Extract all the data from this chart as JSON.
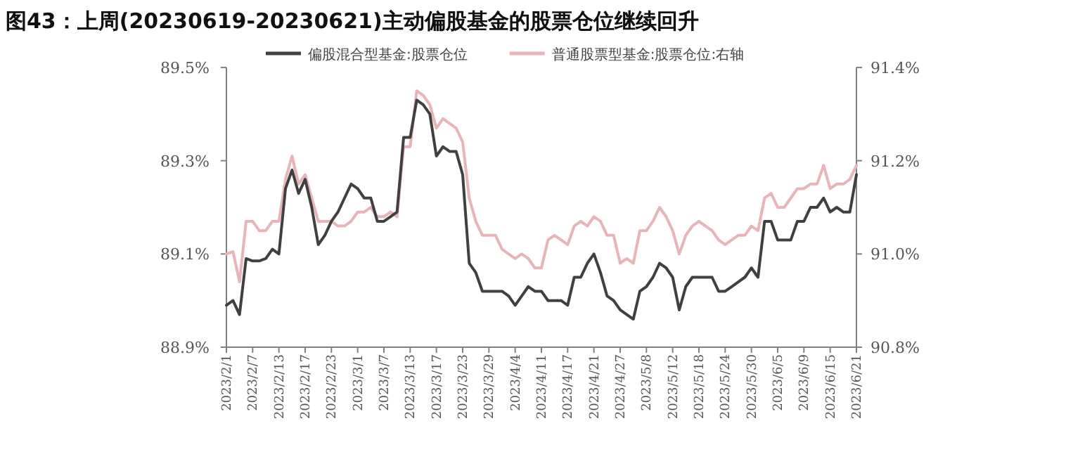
{
  "chart_data": {
    "type": "line",
    "title": "图43：上周(20230619-20230621)主动偏股基金的股票仓位继续回升",
    "categories": [
      "2023/2/1",
      null,
      null,
      null,
      "2023/2/7",
      null,
      null,
      null,
      "2023/2/13",
      null,
      null,
      null,
      "2023/2/17",
      null,
      null,
      null,
      "2023/2/23",
      null,
      null,
      null,
      "2023/3/1",
      null,
      null,
      null,
      "2023/3/7",
      null,
      null,
      null,
      "2023/3/13",
      null,
      null,
      null,
      "2023/3/17",
      null,
      null,
      null,
      "2023/3/23",
      null,
      null,
      null,
      "2023/3/29",
      null,
      null,
      null,
      "2023/4/4",
      null,
      null,
      null,
      "2023/4/11",
      null,
      null,
      null,
      "2023/4/17",
      null,
      null,
      null,
      "2023/4/21",
      null,
      null,
      null,
      "2023/4/27",
      null,
      null,
      null,
      "2023/5/8",
      null,
      null,
      null,
      "2023/5/12",
      null,
      null,
      null,
      "2023/5/18",
      null,
      null,
      null,
      "2023/5/24",
      null,
      null,
      null,
      "2023/5/30",
      null,
      null,
      null,
      "2023/6/5",
      null,
      null,
      null,
      "2023/6/9",
      null,
      null,
      null,
      "2023/6/15",
      null,
      null,
      null,
      "2023/6/21"
    ],
    "series": [
      {
        "name": "偏股混合型基金:股票仓位",
        "color": "#404040",
        "values": [
          88.99,
          89.0,
          88.97,
          89.09,
          89.085,
          89.085,
          89.09,
          89.11,
          89.1,
          89.24,
          89.28,
          89.23,
          89.26,
          89.2,
          89.12,
          89.14,
          89.17,
          89.19,
          89.22,
          89.25,
          89.24,
          89.22,
          89.22,
          89.17,
          89.17,
          89.18,
          89.19,
          89.35,
          89.35,
          89.43,
          89.42,
          89.4,
          89.31,
          89.33,
          89.32,
          89.32,
          89.27,
          89.08,
          89.06,
          89.02,
          89.02,
          89.02,
          89.02,
          89.01,
          88.99,
          89.01,
          89.03,
          89.02,
          89.02,
          89.0,
          89.0,
          89.0,
          88.99,
          89.05,
          89.05,
          89.08,
          89.1,
          89.06,
          89.01,
          89.0,
          88.98,
          88.97,
          88.96,
          89.02,
          89.03,
          89.05,
          89.08,
          89.07,
          89.05,
          88.98,
          89.03,
          89.05,
          89.05,
          89.05,
          89.05,
          89.02,
          89.02,
          89.03,
          89.04,
          89.05,
          89.07,
          89.05,
          89.17,
          89.17,
          89.13,
          89.13,
          89.13,
          89.17,
          89.17,
          89.2,
          89.2,
          89.22,
          89.19,
          89.2,
          89.19,
          89.19,
          89.27
        ]
      },
      {
        "name": "普通股票型基金:股票仓位:右轴",
        "color": "#e8b4b8",
        "axis": "y2",
        "values": [
          91.0,
          91.005,
          90.94,
          91.07,
          91.07,
          91.05,
          91.05,
          91.07,
          91.07,
          91.16,
          91.21,
          91.15,
          91.17,
          91.12,
          91.07,
          91.07,
          91.07,
          91.06,
          91.06,
          91.07,
          91.09,
          91.09,
          91.1,
          91.08,
          91.08,
          91.09,
          91.08,
          91.23,
          91.23,
          91.35,
          91.34,
          91.32,
          91.27,
          91.29,
          91.28,
          91.27,
          91.24,
          91.12,
          91.07,
          91.04,
          91.04,
          91.04,
          91.01,
          91.0,
          90.99,
          91.0,
          90.99,
          90.97,
          90.97,
          91.03,
          91.04,
          91.03,
          91.02,
          91.06,
          91.07,
          91.06,
          91.08,
          91.07,
          91.04,
          91.04,
          90.98,
          90.99,
          90.98,
          91.05,
          91.05,
          91.07,
          91.1,
          91.08,
          91.05,
          91.0,
          91.04,
          91.06,
          91.07,
          91.06,
          91.05,
          91.03,
          91.02,
          91.03,
          91.04,
          91.04,
          91.06,
          91.05,
          91.12,
          91.13,
          91.1,
          91.1,
          91.12,
          91.14,
          91.14,
          91.15,
          91.15,
          91.19,
          91.14,
          91.15,
          91.15,
          91.16,
          91.19
        ]
      }
    ],
    "ylim": [
      88.9,
      89.5
    ],
    "yticks": [
      {
        "value": 88.9,
        "label": "88.9%"
      },
      {
        "value": 89.1,
        "label": "89.1%"
      },
      {
        "value": 89.3,
        "label": "89.3%"
      },
      {
        "value": 89.5,
        "label": "89.5%"
      }
    ],
    "y2lim": [
      90.8,
      91.4
    ],
    "y2ticks": [
      {
        "value": 90.8,
        "label": "90.8%"
      },
      {
        "value": 91.0,
        "label": "91.0%"
      },
      {
        "value": 91.2,
        "label": "91.2%"
      },
      {
        "value": 91.4,
        "label": "91.4%"
      }
    ],
    "legend": "top",
    "grid": false,
    "marker": "none",
    "line_style": "solid"
  }
}
